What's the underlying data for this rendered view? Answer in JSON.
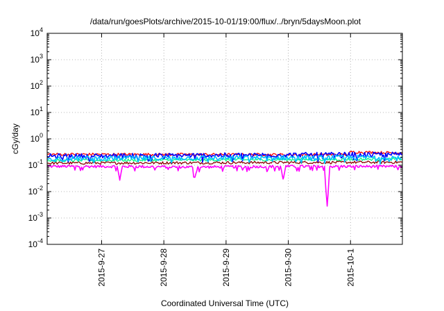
{
  "chart_data": {
    "type": "line",
    "title": "/data/run/goesPlots/archive/2015-10-01/19:00/flux/../bryn/5daysMoon.plot",
    "xlabel": "Coordinated Universal Time (UTC)",
    "ylabel": "cGy/day",
    "yscale": "log",
    "ylim": [
      0.0001,
      10000
    ],
    "xlim": [
      "2015-09-26 03:00",
      "2015-10-01 20:00"
    ],
    "y_ticks": [
      {
        "base": "10",
        "exp": "-4",
        "value": 0.0001
      },
      {
        "base": "10",
        "exp": "-3",
        "value": 0.001
      },
      {
        "base": "10",
        "exp": "-2",
        "value": 0.01
      },
      {
        "base": "10",
        "exp": "-1",
        "value": 0.1
      },
      {
        "base": "10",
        "exp": "0",
        "value": 1
      },
      {
        "base": "10",
        "exp": "1",
        "value": 10
      },
      {
        "base": "10",
        "exp": "2",
        "value": 100
      },
      {
        "base": "10",
        "exp": "3",
        "value": 1000
      },
      {
        "base": "10",
        "exp": "4",
        "value": 10000
      }
    ],
    "x_tick_labels": [
      "2015-9-27",
      "2015-9-28",
      "2015-9-29",
      "2015-9-30",
      "2015-10-1"
    ],
    "x_tick_dates": [
      "2015-09-27 00:00",
      "2015-09-28 00:00",
      "2015-09-29 00:00",
      "2015-09-30 00:00",
      "2015-10-01 00:00"
    ],
    "grid": true,
    "legend": "none",
    "series": [
      {
        "color": "#ff00ff",
        "x": [
          "2015-09-26 03:00",
          "2015-09-27 06:00",
          "2015-09-27 07:00",
          "2015-09-27 08:00",
          "2015-09-28 11:00",
          "2015-09-28 12:00",
          "2015-09-28 13:00",
          "2015-09-29 21:00",
          "2015-09-29 22:00",
          "2015-09-29 23:00",
          "2015-09-30 14:00",
          "2015-09-30 15:00",
          "2015-09-30 16:00",
          "2015-10-01 20:00"
        ],
        "values": [
          0.09,
          0.09,
          0.027,
          0.09,
          0.085,
          0.035,
          0.085,
          0.09,
          0.03,
          0.09,
          0.09,
          0.0028,
          0.09,
          0.09
        ]
      },
      {
        "color": "#8b0000",
        "x": [
          "2015-09-26 03:00",
          "2015-10-01 20:00"
        ],
        "values": [
          0.12,
          0.13
        ]
      },
      {
        "color": "#ff0000",
        "x": [
          "2015-09-26 03:00",
          "2015-09-30 23:00",
          "2015-10-01 00:00",
          "2015-10-01 20:00"
        ],
        "values": [
          0.26,
          0.25,
          0.32,
          0.29
        ]
      },
      {
        "color": "#00ff7f",
        "x": [
          "2015-09-26 03:00",
          "2015-10-01 20:00"
        ],
        "values": [
          0.15,
          0.17
        ]
      },
      {
        "color": "#0000ff",
        "x": [
          "2015-09-26 03:00",
          "2015-10-01 20:00"
        ],
        "values": [
          0.22,
          0.26
        ]
      },
      {
        "color": "#00bfff",
        "x": [
          "2015-09-26 03:00",
          "2015-10-01 20:00"
        ],
        "values": [
          0.18,
          0.2
        ]
      }
    ]
  }
}
